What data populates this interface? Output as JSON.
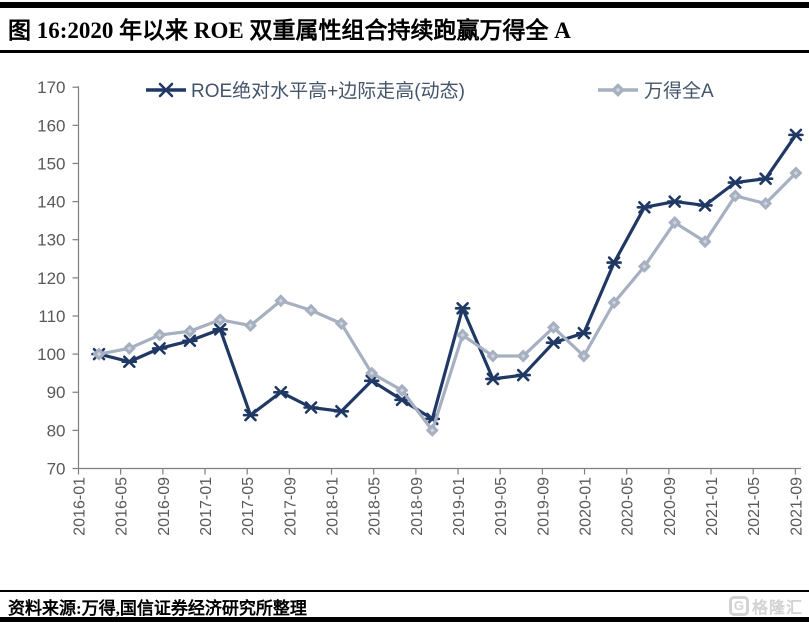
{
  "title": "图 16:2020 年以来 ROE 双重属性组合持续跑赢万得全 A",
  "footer": {
    "source_text": "资料来源:万得,国信证券经济研究所整理",
    "logo_letter": "G",
    "logo_text": "格隆汇"
  },
  "colors": {
    "series1": "#1f3864",
    "series2": "#a6b0c0",
    "series2_inner": "#cdd4de",
    "axis": "#7f7f7f",
    "tick_label": "#595959",
    "legend_text": "#44546a",
    "border": "#000000",
    "logo": "#d2d2d2"
  },
  "chart_data": {
    "type": "line",
    "title": "图 16:2020 年以来 ROE 双重属性组合持续跑赢万得全 A",
    "xlabel": "",
    "ylabel": "",
    "ylim": [
      70,
      170
    ],
    "y_ticks": [
      70,
      80,
      90,
      100,
      110,
      120,
      130,
      140,
      150,
      160,
      170
    ],
    "x_tick_labels": [
      "2016-01",
      "2016-05",
      "2016-09",
      "2017-01",
      "2017-05",
      "2017-09",
      "2018-01",
      "2018-05",
      "2018-09",
      "2019-01",
      "2019-05",
      "2019-09",
      "2020-01",
      "2020-05",
      "2020-09",
      "2021-01",
      "2021-05",
      "2021-09"
    ],
    "x": [
      "2016-01",
      "2016-04",
      "2016-07",
      "2016-10",
      "2017-01",
      "2017-04",
      "2017-07",
      "2017-10",
      "2018-01",
      "2018-04",
      "2018-07",
      "2018-10",
      "2019-01",
      "2019-04",
      "2019-07",
      "2019-10",
      "2020-01",
      "2020-04",
      "2020-07",
      "2020-10",
      "2021-01",
      "2021-04",
      "2021-07",
      "2021-09"
    ],
    "grid": false,
    "legend_position": "top-center",
    "base_value": 100,
    "series": [
      {
        "name": "ROE绝对水平高+边际走高(动态)",
        "marker": "x-star",
        "color": "#1f3864",
        "values": [
          100,
          98,
          101.5,
          103.5,
          106.5,
          84,
          90,
          86,
          85,
          93,
          88,
          83,
          112,
          93.5,
          94.5,
          103,
          105.5,
          124,
          138.5,
          140,
          139,
          145,
          146,
          157.5
        ]
      },
      {
        "name": "万得全A",
        "marker": "diamond",
        "color": "#a6b0c0",
        "values": [
          100,
          101.5,
          105,
          106,
          109,
          107.5,
          114,
          111.5,
          108,
          95,
          90.5,
          80,
          105,
          99.5,
          99.5,
          107,
          99.5,
          113.5,
          123,
          134.5,
          129.5,
          141.5,
          139.5,
          147.5
        ]
      }
    ]
  }
}
